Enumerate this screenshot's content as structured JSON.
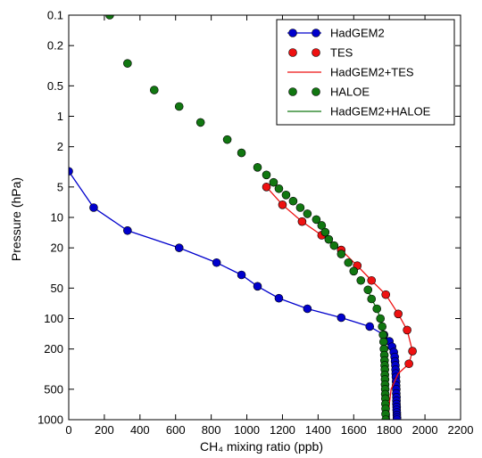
{
  "chart_data": {
    "type": "scatter",
    "title": "",
    "xlabel": "CH₄ mixing ratio (ppb)",
    "ylabel": "Pressure (hPa)",
    "xlim": [
      0,
      2200
    ],
    "ylim": [
      1000,
      0.1
    ],
    "yscale": "log",
    "y_inverted": true,
    "grid": false,
    "legend_position": "top-right",
    "x_ticks": [
      "0",
      "200",
      "400",
      "600",
      "800",
      "1000",
      "1200",
      "1400",
      "1600",
      "1800",
      "2000",
      "2200"
    ],
    "y_ticks": [
      {
        "value": 0.1,
        "label": "0.1"
      },
      {
        "value": 0.2,
        "label": "0.2"
      },
      {
        "value": 0.5,
        "label": "0.5"
      },
      {
        "value": 1,
        "label": "1"
      },
      {
        "value": 2,
        "label": "2"
      },
      {
        "value": 5,
        "label": "5"
      },
      {
        "value": 10,
        "label": "10"
      },
      {
        "value": 20,
        "label": "20"
      },
      {
        "value": 50,
        "label": "50"
      },
      {
        "value": 100,
        "label": "100"
      },
      {
        "value": 200,
        "label": "200"
      },
      {
        "value": 500,
        "label": "500"
      },
      {
        "value": 1000,
        "label": "1000"
      }
    ],
    "series": [
      {
        "name": "HadGEM2",
        "style": "line-marker",
        "color": "#0000cc",
        "x": [
          0,
          140,
          330,
          620,
          830,
          970,
          1060,
          1180,
          1340,
          1530,
          1690,
          1770,
          1800,
          1815,
          1825,
          1830,
          1832,
          1834,
          1835,
          1836,
          1837,
          1838,
          1838,
          1839,
          1839,
          1840,
          1840,
          1840,
          1841,
          1841,
          1842,
          1842,
          1843,
          1843
        ],
        "y": [
          3.5,
          8,
          13.5,
          20,
          28,
          37,
          48,
          63,
          80,
          98,
          120,
          145,
          168,
          190,
          215,
          240,
          265,
          290,
          320,
          350,
          380,
          420,
          460,
          500,
          550,
          600,
          650,
          700,
          750,
          800,
          850,
          900,
          950,
          1000
        ]
      },
      {
        "name": "TES",
        "style": "marker",
        "color": "#ee1111",
        "x": [
          1110,
          1200,
          1310,
          1420,
          1530,
          1620,
          1700,
          1780,
          1850,
          1900,
          1930,
          1910
        ],
        "y": [
          5,
          7.5,
          11,
          15,
          21,
          30,
          42,
          58,
          90,
          130,
          210,
          280
        ]
      },
      {
        "name": "HadGEM2+TES",
        "style": "line",
        "color": "#ee1111",
        "x": [
          1110,
          1200,
          1310,
          1420,
          1530,
          1620,
          1700,
          1780,
          1850,
          1900,
          1930,
          1910,
          1850,
          1810,
          1800,
          1795
        ],
        "y": [
          5,
          7.5,
          11,
          15,
          21,
          30,
          42,
          58,
          90,
          130,
          210,
          280,
          350,
          500,
          700,
          1000
        ]
      },
      {
        "name": "HALOE",
        "style": "marker",
        "color": "#117711",
        "x": [
          230,
          330,
          480,
          620,
          740,
          890,
          970,
          1060,
          1110,
          1150,
          1180,
          1220,
          1260,
          1300,
          1340,
          1390,
          1420,
          1440,
          1460,
          1490,
          1530,
          1570,
          1600,
          1640,
          1680,
          1700,
          1730,
          1750,
          1760,
          1765,
          1768,
          1770,
          1772,
          1773,
          1774,
          1775,
          1775,
          1776,
          1776,
          1777,
          1777,
          1778,
          1778,
          1779,
          1779,
          1780
        ],
        "y": [
          0.1,
          0.3,
          0.55,
          0.8,
          1.15,
          1.7,
          2.3,
          3.2,
          3.8,
          4.5,
          5.2,
          6,
          6.9,
          8,
          9.2,
          10.5,
          12,
          14,
          16.5,
          19,
          23,
          28,
          34,
          42,
          52,
          64,
          80,
          100,
          120,
          145,
          170,
          200,
          230,
          260,
          290,
          320,
          360,
          400,
          450,
          500,
          560,
          620,
          700,
          780,
          880,
          1000
        ]
      },
      {
        "name": "HadGEM2+HALOE",
        "style": "line",
        "color": "#117711",
        "x": [
          1680,
          1700,
          1730,
          1750,
          1760,
          1765,
          1770,
          1773,
          1775,
          1777,
          1778,
          1780
        ],
        "y": [
          52,
          64,
          80,
          100,
          120,
          145,
          200,
          260,
          360,
          500,
          700,
          1000
        ]
      }
    ]
  }
}
